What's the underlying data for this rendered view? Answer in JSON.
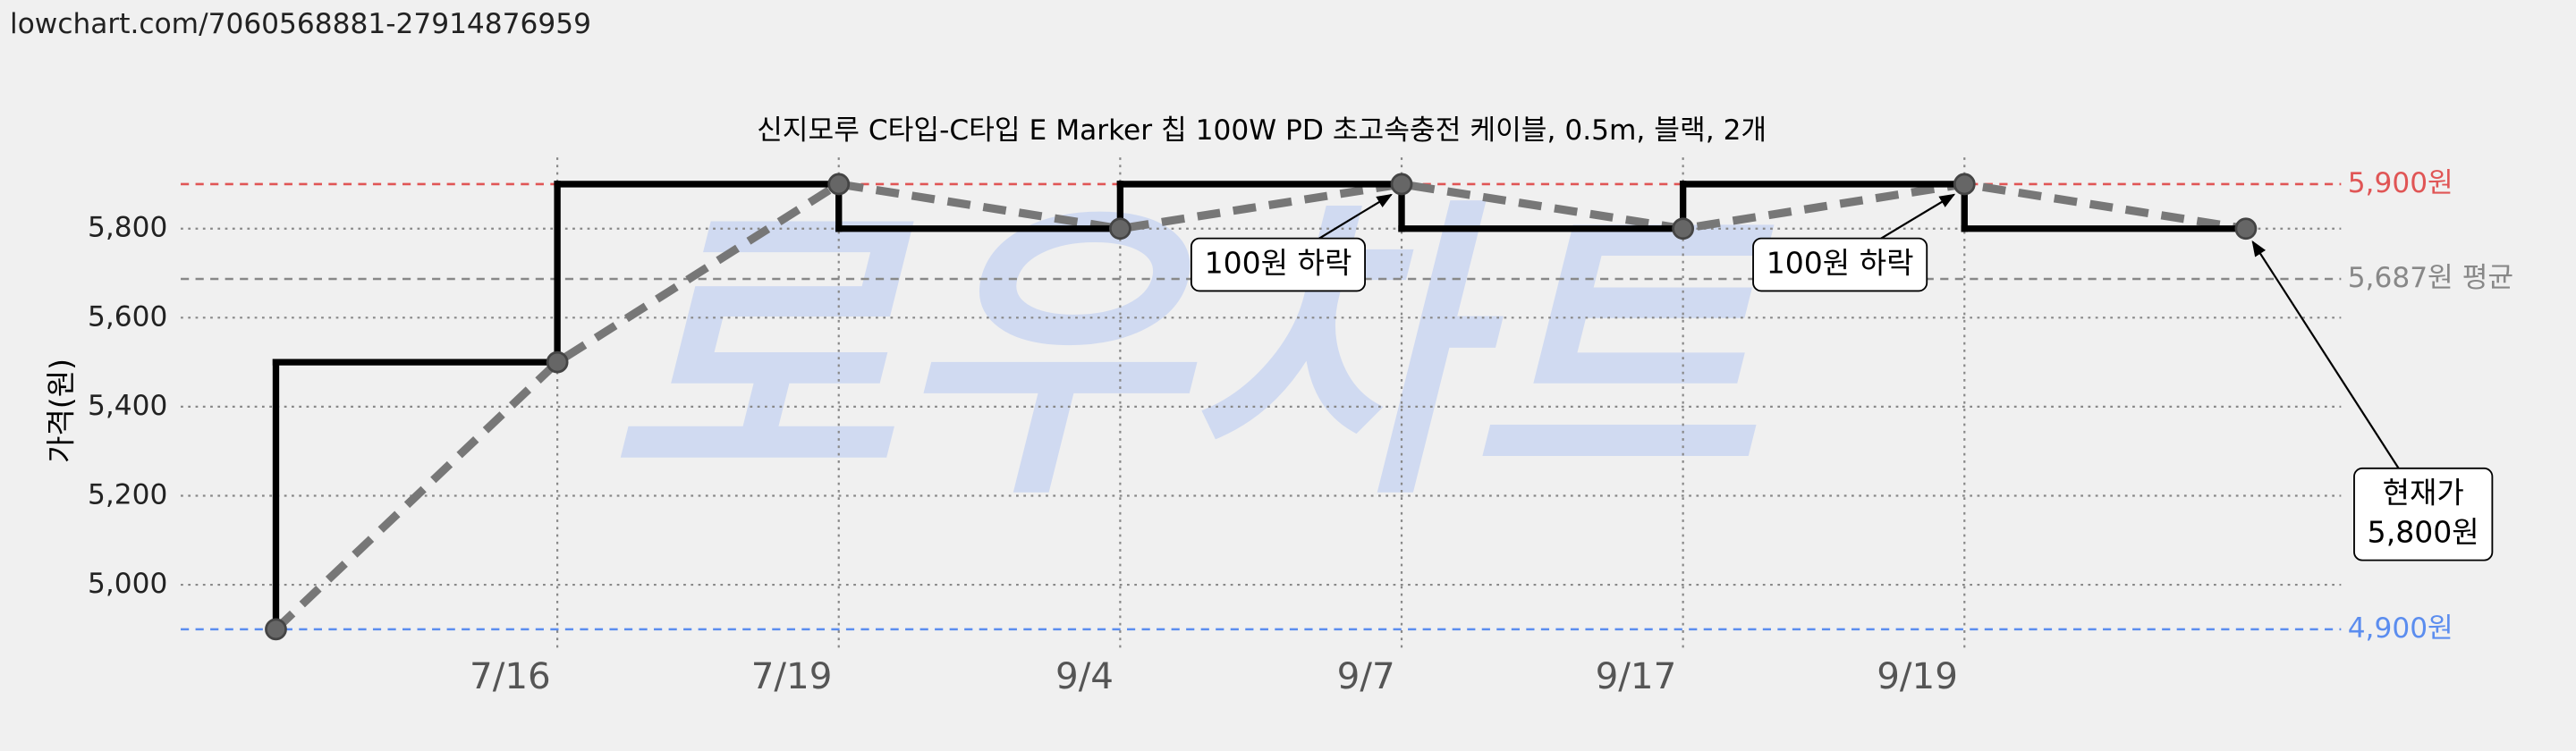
{
  "url": "lowchart.com/7060568881-27914876959",
  "chart_data": {
    "type": "step-line",
    "title": "신지모루 C타입-C타입 E Marker 칩 100W PD 초고속충전 케이블, 0.5m, 블랙, 2개",
    "ylabel": "가격(원)",
    "watermark": "로우차트",
    "categories": [
      null,
      "7/16",
      "7/19",
      "9/4",
      "9/7",
      "9/17",
      "9/19",
      null
    ],
    "values": [
      4900,
      5500,
      5900,
      5800,
      5900,
      5800,
      5900,
      5800
    ],
    "step_color": "#000000",
    "trend_color": "#777777",
    "ylim": [
      4850,
      5960
    ],
    "yticks": [
      {
        "value": 5000,
        "label": "5,000"
      },
      {
        "value": 5200,
        "label": "5,200"
      },
      {
        "value": 5400,
        "label": "5,400"
      },
      {
        "value": 5600,
        "label": "5,600"
      },
      {
        "value": 5800,
        "label": "5,800"
      }
    ],
    "grid": true,
    "reference_lines": [
      {
        "value": 5900,
        "label": "5,900원",
        "color": "#e05555"
      },
      {
        "value": 5687,
        "label": "5,687원 평균",
        "color": "#888888"
      },
      {
        "value": 4900,
        "label": "4,900원",
        "color": "#5b8def"
      }
    ],
    "annotations": [
      {
        "lines": [
          "100원 하락"
        ],
        "target": 4
      },
      {
        "lines": [
          "100원 하락"
        ],
        "target": 6
      },
      {
        "lines": [
          "현재가",
          "5,800원"
        ],
        "target": 7
      }
    ]
  }
}
